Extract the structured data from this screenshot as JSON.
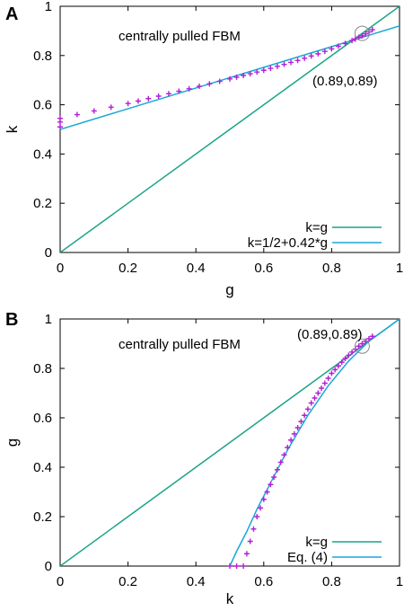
{
  "colors": {
    "diagonal": "#1aa386",
    "fit": "#18a8d8",
    "markers": "#b21fd6",
    "circle": "#888888"
  },
  "chart_data": [
    {
      "panel_letter": "A",
      "type": "scatter",
      "title": "",
      "annotation": "centrally pulled FBM",
      "xlabel": "g",
      "ylabel": "k",
      "xlim": [
        0,
        1
      ],
      "ylim": [
        0,
        1
      ],
      "xticks": [
        "0",
        "0.2",
        "0.4",
        "0.6",
        "0.8",
        "1"
      ],
      "yticks": [
        "0",
        "0.2",
        "0.4",
        "0.6",
        "0.8",
        "1"
      ],
      "grid": false,
      "legend_position": "bottom-right",
      "highlight": {
        "x": 0.89,
        "y": 0.89,
        "label": "(0.89,0.89)"
      },
      "series": [
        {
          "name": "",
          "kind": "markers",
          "marker": "+",
          "x": [
            0.0,
            0.0,
            0.0,
            0.05,
            0.1,
            0.15,
            0.2,
            0.23,
            0.26,
            0.29,
            0.32,
            0.35,
            0.38,
            0.41,
            0.44,
            0.47,
            0.5,
            0.52,
            0.54,
            0.56,
            0.58,
            0.6,
            0.62,
            0.64,
            0.66,
            0.68,
            0.7,
            0.72,
            0.74,
            0.76,
            0.78,
            0.8,
            0.82,
            0.84,
            0.86,
            0.87,
            0.88,
            0.89,
            0.9,
            0.91,
            0.92
          ],
          "y": [
            0.51,
            0.53,
            0.545,
            0.56,
            0.575,
            0.59,
            0.605,
            0.615,
            0.625,
            0.635,
            0.645,
            0.655,
            0.665,
            0.675,
            0.685,
            0.695,
            0.705,
            0.712,
            0.719,
            0.726,
            0.733,
            0.74,
            0.748,
            0.756,
            0.764,
            0.772,
            0.78,
            0.789,
            0.798,
            0.807,
            0.817,
            0.827,
            0.838,
            0.849,
            0.861,
            0.867,
            0.874,
            0.88,
            0.888,
            0.896,
            0.905
          ]
        },
        {
          "name": "k=g",
          "kind": "line",
          "x": [
            0,
            1
          ],
          "y": [
            0,
            1
          ]
        },
        {
          "name": "k=1/2+0.42*g",
          "kind": "line",
          "x": [
            0,
            1
          ],
          "y": [
            0.5,
            0.92
          ]
        }
      ]
    },
    {
      "panel_letter": "B",
      "type": "scatter",
      "title": "",
      "annotation": "centrally pulled FBM",
      "xlabel": "k",
      "ylabel": "g",
      "xlim": [
        0,
        1
      ],
      "ylim": [
        0,
        1
      ],
      "xticks": [
        "0",
        "0.2",
        "0.4",
        "0.6",
        "0.8",
        "1"
      ],
      "yticks": [
        "0",
        "0.2",
        "0.4",
        "0.6",
        "0.8",
        "1"
      ],
      "grid": false,
      "legend_position": "bottom-right",
      "highlight": {
        "x": 0.89,
        "y": 0.89,
        "label": "(0.89,0.89)"
      },
      "series": [
        {
          "name": "",
          "kind": "markers",
          "marker": "+",
          "x": [
            0.5,
            0.52,
            0.54,
            0.55,
            0.56,
            0.57,
            0.58,
            0.59,
            0.6,
            0.61,
            0.62,
            0.63,
            0.64,
            0.65,
            0.66,
            0.67,
            0.68,
            0.69,
            0.7,
            0.71,
            0.72,
            0.73,
            0.74,
            0.75,
            0.76,
            0.77,
            0.78,
            0.79,
            0.8,
            0.81,
            0.82,
            0.83,
            0.84,
            0.85,
            0.86,
            0.87,
            0.88,
            0.89,
            0.9,
            0.91,
            0.92
          ],
          "y": [
            0.0,
            0.0,
            0.0,
            0.05,
            0.1,
            0.15,
            0.2,
            0.235,
            0.27,
            0.3,
            0.33,
            0.36,
            0.39,
            0.42,
            0.45,
            0.48,
            0.51,
            0.535,
            0.56,
            0.585,
            0.61,
            0.635,
            0.66,
            0.68,
            0.7,
            0.72,
            0.74,
            0.76,
            0.78,
            0.795,
            0.81,
            0.825,
            0.84,
            0.853,
            0.866,
            0.878,
            0.89,
            0.9,
            0.91,
            0.92,
            0.93
          ]
        },
        {
          "name": "k=g",
          "kind": "line",
          "x": [
            0,
            1
          ],
          "y": [
            0,
            1
          ]
        },
        {
          "name": "Eq. (4)",
          "kind": "line",
          "x": [
            0.5,
            0.52,
            0.55,
            0.58,
            0.61,
            0.64,
            0.67,
            0.7,
            0.73,
            0.76,
            0.79,
            0.82,
            0.85,
            0.88,
            0.91,
            0.94,
            0.97,
            1.0
          ],
          "y": [
            0.0,
            0.06,
            0.14,
            0.23,
            0.31,
            0.39,
            0.47,
            0.54,
            0.61,
            0.67,
            0.73,
            0.78,
            0.83,
            0.87,
            0.91,
            0.94,
            0.97,
            1.0
          ]
        }
      ]
    }
  ]
}
